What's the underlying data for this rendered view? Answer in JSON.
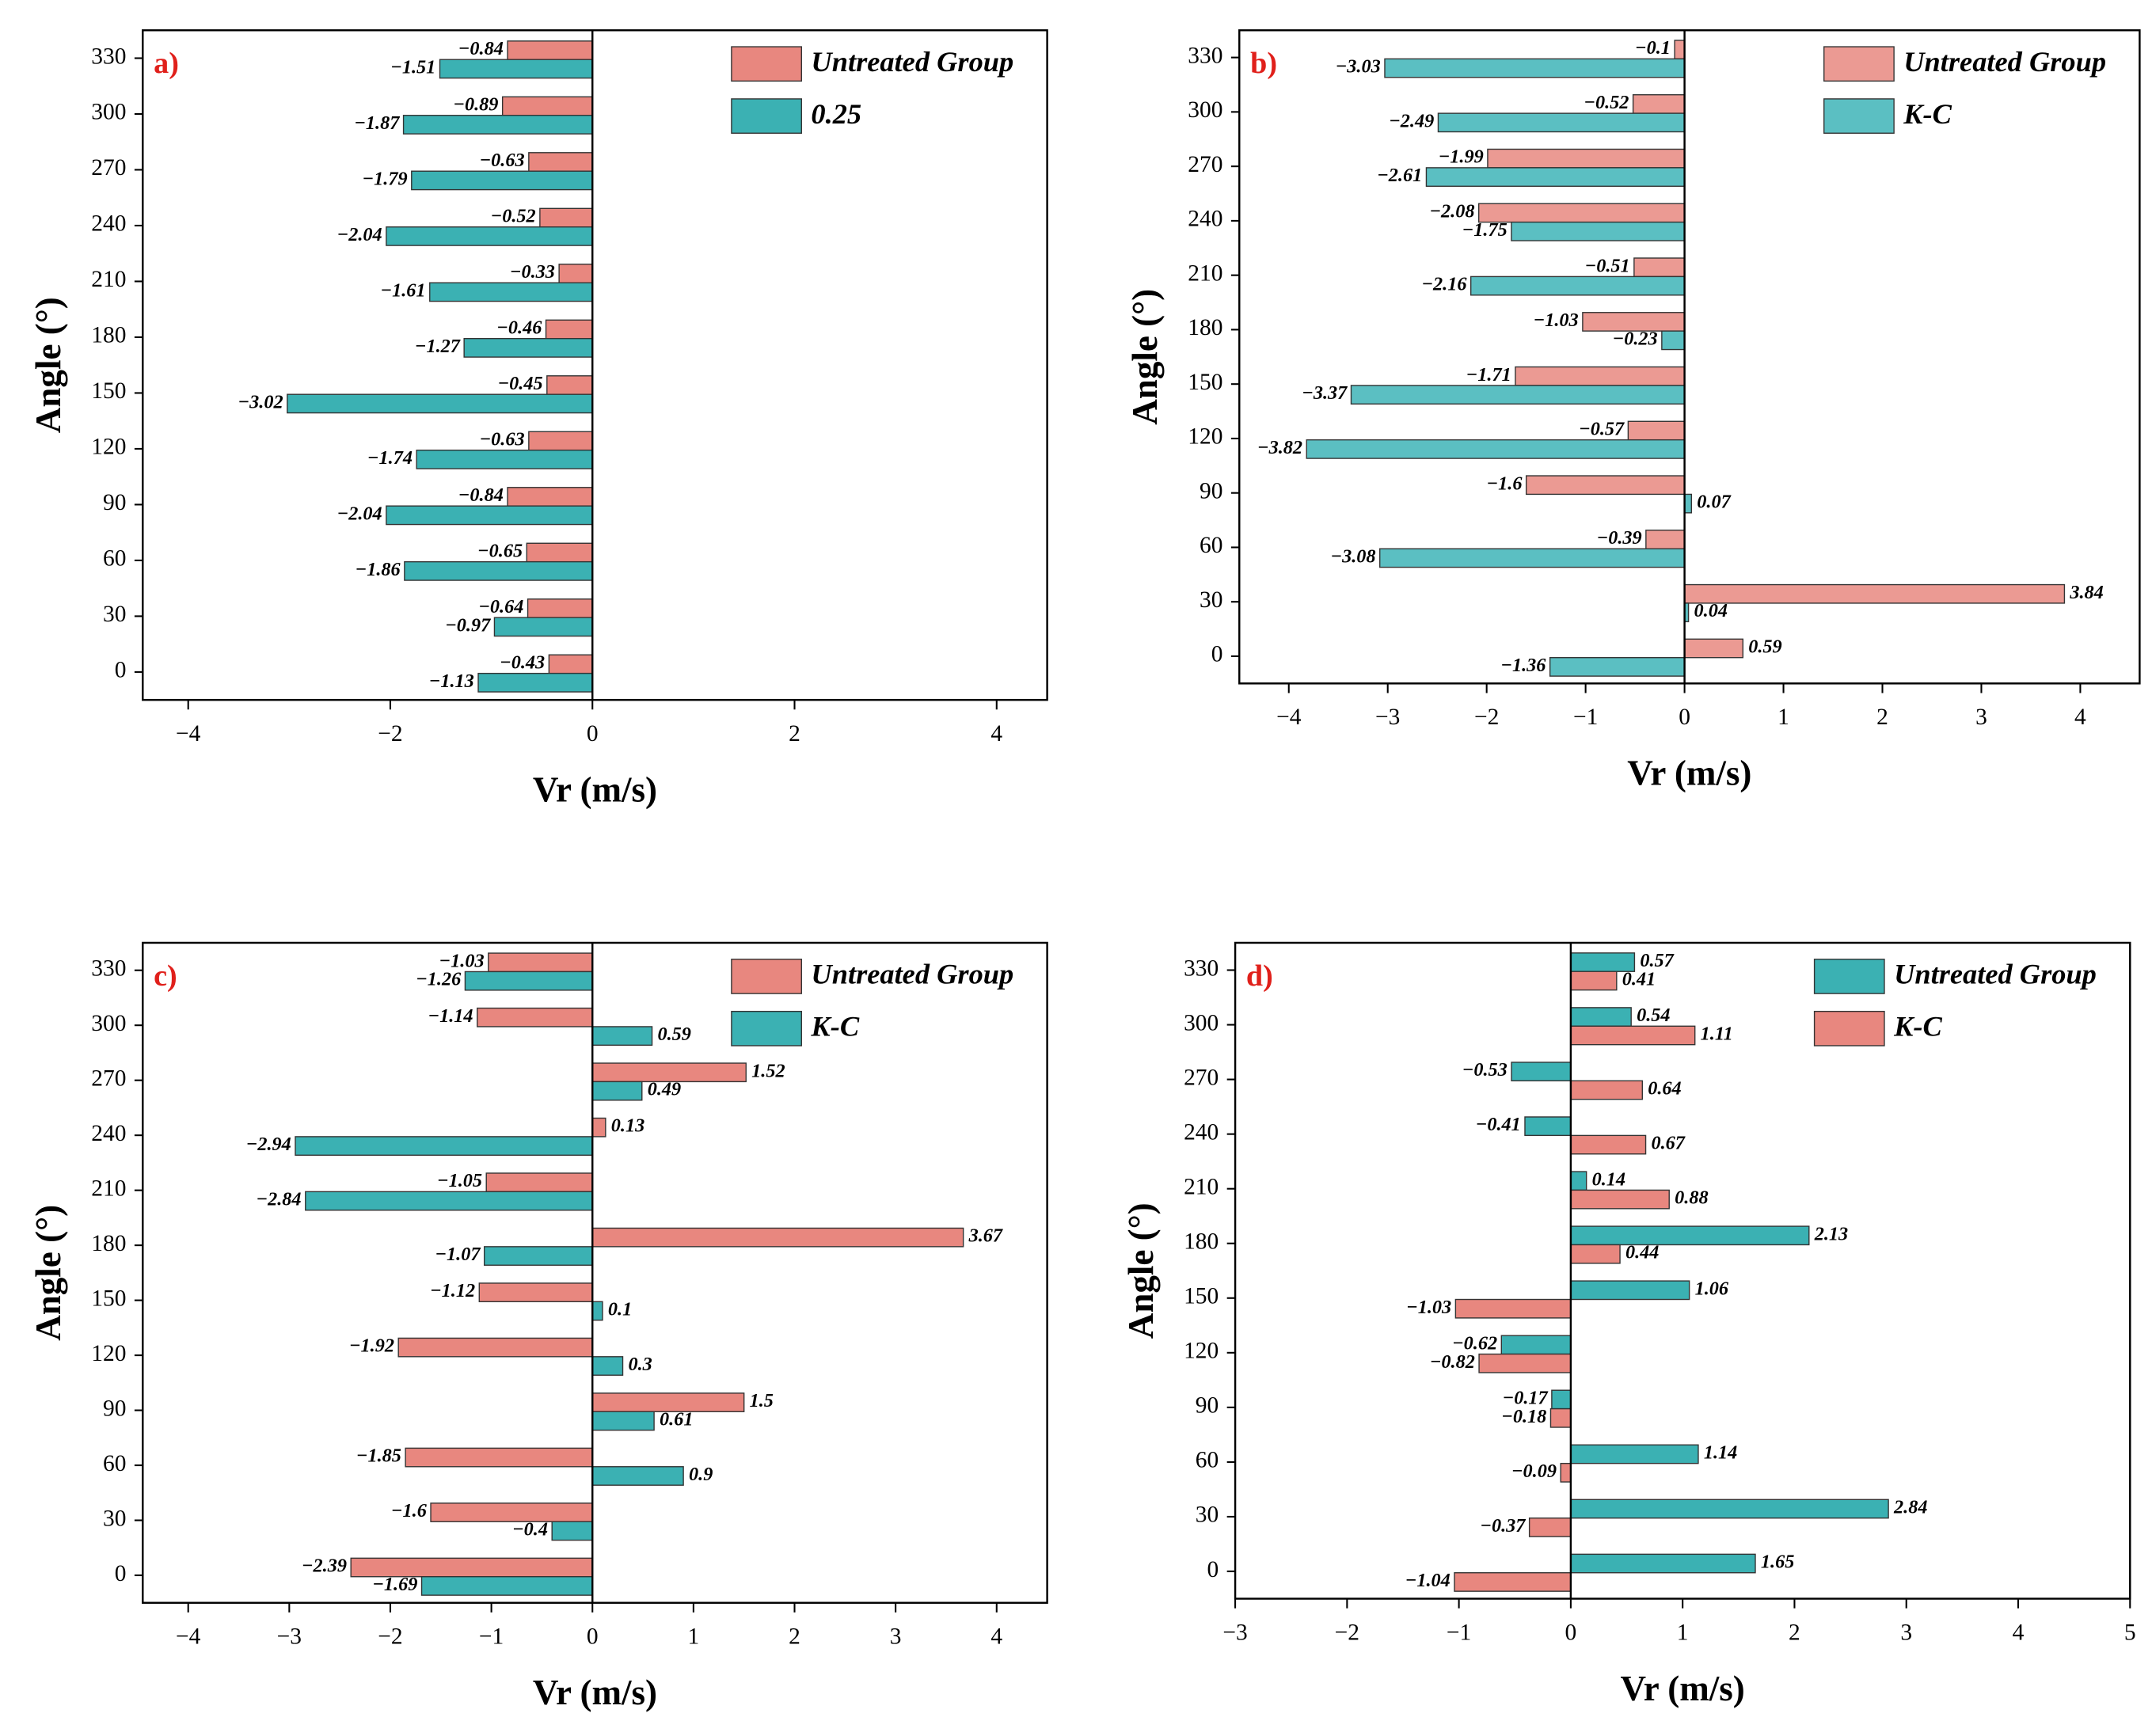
{
  "chart_data": [
    {
      "type": "barh",
      "panel_label": "a)",
      "xlabel": "Vr (m/s)",
      "ylabel": "Angle (°)",
      "categories": [
        "0",
        "30",
        "60",
        "90",
        "120",
        "150",
        "180",
        "210",
        "240",
        "270",
        "300",
        "330"
      ],
      "series": [
        {
          "name": "Untreated Group",
          "color": "#e8877f",
          "values": [
            -0.43,
            -0.64,
            -0.65,
            -0.84,
            -0.63,
            -0.45,
            -0.46,
            -0.33,
            -0.52,
            -0.63,
            -0.89,
            -0.84
          ],
          "value_labels": [
            "−0.43",
            "−0.64",
            "−0.65",
            "−0.84",
            "−0.63",
            "−0.45",
            "−0.46",
            "−0.33",
            "−0.52",
            "−0.63",
            "−0.89",
            "−0.84"
          ]
        },
        {
          "name": "0.25",
          "color": "#3bb1b3",
          "values": [
            -1.13,
            -0.97,
            -1.86,
            -2.04,
            -1.74,
            -3.02,
            -1.27,
            -1.61,
            -2.04,
            -1.79,
            -1.87,
            -1.51
          ],
          "value_labels": [
            "−1.13",
            "−0.97",
            "−1.86",
            "−2.04",
            "−1.74",
            "−3.02",
            "−1.27",
            "−1.61",
            "−2.04",
            "−1.79",
            "−1.87",
            "−1.51"
          ]
        }
      ],
      "xlim": [
        -4.45,
        4.5
      ],
      "xticks": [
        {
          "value": -4,
          "label": "−4"
        },
        {
          "value": -2,
          "label": "−2"
        },
        0,
        2,
        4
      ],
      "legend": "upper right",
      "grid": false
    },
    {
      "type": "barh",
      "panel_label": "b)",
      "xlabel": "Vr (m/s)",
      "ylabel": "Angle (°)",
      "categories": [
        "0",
        "30",
        "60",
        "90",
        "120",
        "150",
        "180",
        "210",
        "240",
        "270",
        "300",
        "330"
      ],
      "series": [
        {
          "name": "Untreated Group",
          "color": "#eb9a93",
          "values": [
            0.59,
            3.84,
            -0.39,
            -1.6,
            -0.57,
            -1.71,
            -1.03,
            -0.51,
            -2.08,
            -1.99,
            -0.52,
            -0.1
          ],
          "value_labels": [
            "0.59",
            "3.84",
            "−0.39",
            "−1.6",
            "−0.57",
            "−1.71",
            "−1.03",
            "−0.51",
            "−2.08",
            "−1.99",
            "−0.52",
            "−0.1"
          ]
        },
        {
          "name": "K-C",
          "color": "#5bbfc2",
          "values": [
            -1.36,
            0.04,
            -3.08,
            0.07,
            -3.82,
            -3.37,
            -0.23,
            -2.16,
            -1.75,
            -2.61,
            -2.49,
            -3.03
          ],
          "value_labels": [
            "−1.36",
            "0.04",
            "−3.08",
            "0.07",
            "−3.82",
            "−3.37",
            "−0.23",
            "−2.16",
            "−1.75",
            "−2.61",
            "−2.49",
            "−3.03"
          ]
        }
      ],
      "xlim": [
        -4.5,
        4.6
      ],
      "xticks": [
        {
          "value": -4,
          "label": "−4"
        },
        {
          "value": -3,
          "label": "−3"
        },
        {
          "value": -2,
          "label": "−2"
        },
        {
          "value": -1,
          "label": "−1"
        },
        0,
        1,
        2,
        3,
        4
      ],
      "legend": "upper right",
      "grid": false
    },
    {
      "type": "barh",
      "panel_label": "c)",
      "xlabel": "Vr (m/s)",
      "ylabel": "Angle (°)",
      "categories": [
        "0",
        "30",
        "60",
        "90",
        "120",
        "150",
        "180",
        "210",
        "240",
        "270",
        "300",
        "330"
      ],
      "series": [
        {
          "name": "Untreated Group",
          "color": "#e8877f",
          "values": [
            -2.39,
            -1.6,
            -1.85,
            1.5,
            -1.92,
            -1.12,
            3.67,
            -1.05,
            0.13,
            1.52,
            -1.14,
            -1.03
          ],
          "value_labels": [
            "−2.39",
            "−1.6",
            "−1.85",
            "1.5",
            "−1.92",
            "−1.12",
            "3.67",
            "−1.05",
            "0.13",
            "1.52",
            "−1.14",
            "−1.03"
          ]
        },
        {
          "name": "K-C",
          "color": "#3bb1b3",
          "values": [
            -1.69,
            -0.4,
            0.9,
            0.61,
            0.3,
            0.1,
            -1.07,
            -2.84,
            -2.94,
            0.49,
            0.59,
            -1.26
          ],
          "value_labels": [
            "−1.69",
            "−0.4",
            "0.9",
            "0.61",
            "0.3",
            "0.1",
            "−1.07",
            "−2.84",
            "−2.94",
            "0.49",
            "0.59",
            "−1.26"
          ]
        }
      ],
      "xlim": [
        -4.45,
        4.5
      ],
      "xticks": [
        {
          "value": -4,
          "label": "−4"
        },
        {
          "value": -3,
          "label": "−3"
        },
        {
          "value": -2,
          "label": "−2"
        },
        {
          "value": -1,
          "label": "−1"
        },
        0,
        1,
        2,
        3,
        4
      ],
      "legend": "upper right",
      "grid": false
    },
    {
      "type": "barh",
      "panel_label": "d)",
      "xlabel": "Vr (m/s)",
      "ylabel": "Angle (°)",
      "categories": [
        "0",
        "30",
        "60",
        "90",
        "120",
        "150",
        "180",
        "210",
        "240",
        "270",
        "300",
        "330"
      ],
      "series": [
        {
          "name": "Untreated Group",
          "color": "#3bb1b3",
          "values": [
            1.65,
            2.84,
            1.14,
            -0.17,
            -0.62,
            1.06,
            2.13,
            0.14,
            -0.41,
            -0.53,
            0.54,
            0.57
          ],
          "value_labels": [
            "1.65",
            "2.84",
            "1.14",
            "−0.17",
            "−0.62",
            "1.06",
            "2.13",
            "0.14",
            "−0.41",
            "−0.53",
            "0.54",
            "0.57"
          ]
        },
        {
          "name": "K-C",
          "color": "#e8877f",
          "values": [
            -1.04,
            -0.37,
            -0.09,
            -0.18,
            -0.82,
            -1.03,
            0.44,
            0.88,
            0.67,
            0.64,
            1.11,
            0.41
          ],
          "value_labels": [
            "−1.04",
            "−0.37",
            "−0.09",
            "−0.18",
            "−0.82",
            "−1.03",
            "0.44",
            "0.88",
            "0.67",
            "0.64",
            "1.11",
            "0.41"
          ]
        }
      ],
      "xlim": [
        -3,
        5
      ],
      "xticks": [
        {
          "value": -3,
          "label": "−3"
        },
        {
          "value": -2,
          "label": "−2"
        },
        {
          "value": -1,
          "label": "−1"
        },
        0,
        1,
        2,
        3,
        4,
        5
      ],
      "legend": "upper right",
      "grid": false
    }
  ]
}
